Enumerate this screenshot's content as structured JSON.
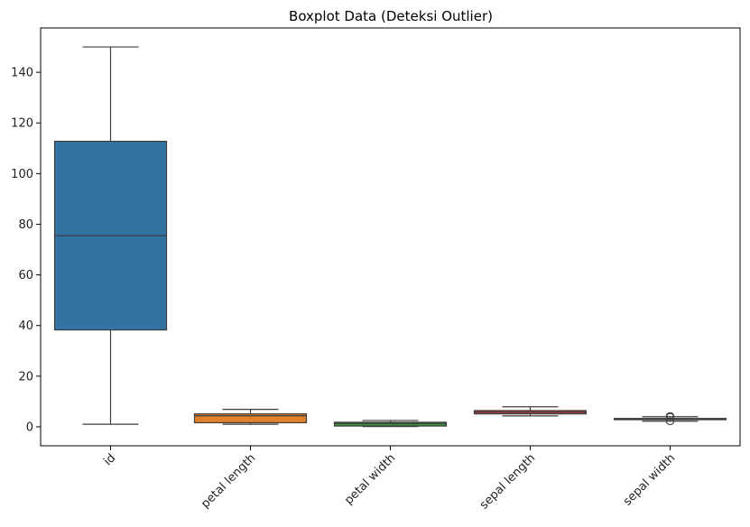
{
  "chart_data": {
    "type": "box",
    "title": "Boxplot Data (Deteksi Outlier)",
    "xlabel": "",
    "ylabel": "",
    "ylim": [
      -7.5,
      157.5
    ],
    "yticks": [
      0,
      20,
      40,
      60,
      80,
      100,
      120,
      140
    ],
    "grid": false,
    "legend": "none",
    "categories": [
      "id",
      "petal length",
      "petal width",
      "sepal length",
      "sepal width"
    ],
    "boxes": [
      {
        "category": "id",
        "whisker_low": 1,
        "q1": 38.25,
        "median": 75.5,
        "q3": 112.75,
        "whisker_high": 150,
        "outliers": [],
        "color": "#3274a1"
      },
      {
        "category": "petal length",
        "whisker_low": 1.0,
        "q1": 1.6,
        "median": 4.35,
        "q3": 5.1,
        "whisker_high": 6.9,
        "outliers": [],
        "color": "#e1812c"
      },
      {
        "category": "petal width",
        "whisker_low": 0.1,
        "q1": 0.3,
        "median": 1.3,
        "q3": 1.8,
        "whisker_high": 2.5,
        "outliers": [],
        "color": "#3a923a"
      },
      {
        "category": "sepal length",
        "whisker_low": 4.3,
        "q1": 5.1,
        "median": 5.8,
        "q3": 6.4,
        "whisker_high": 7.9,
        "outliers": [],
        "color": "#c03d3e"
      },
      {
        "category": "sepal width",
        "whisker_low": 2.2,
        "q1": 2.8,
        "median": 3.0,
        "q3": 3.3,
        "whisker_high": 4.0,
        "outliers": [
          2.0,
          4.1,
          4.2,
          4.4
        ],
        "color": "#9372b2"
      }
    ]
  }
}
